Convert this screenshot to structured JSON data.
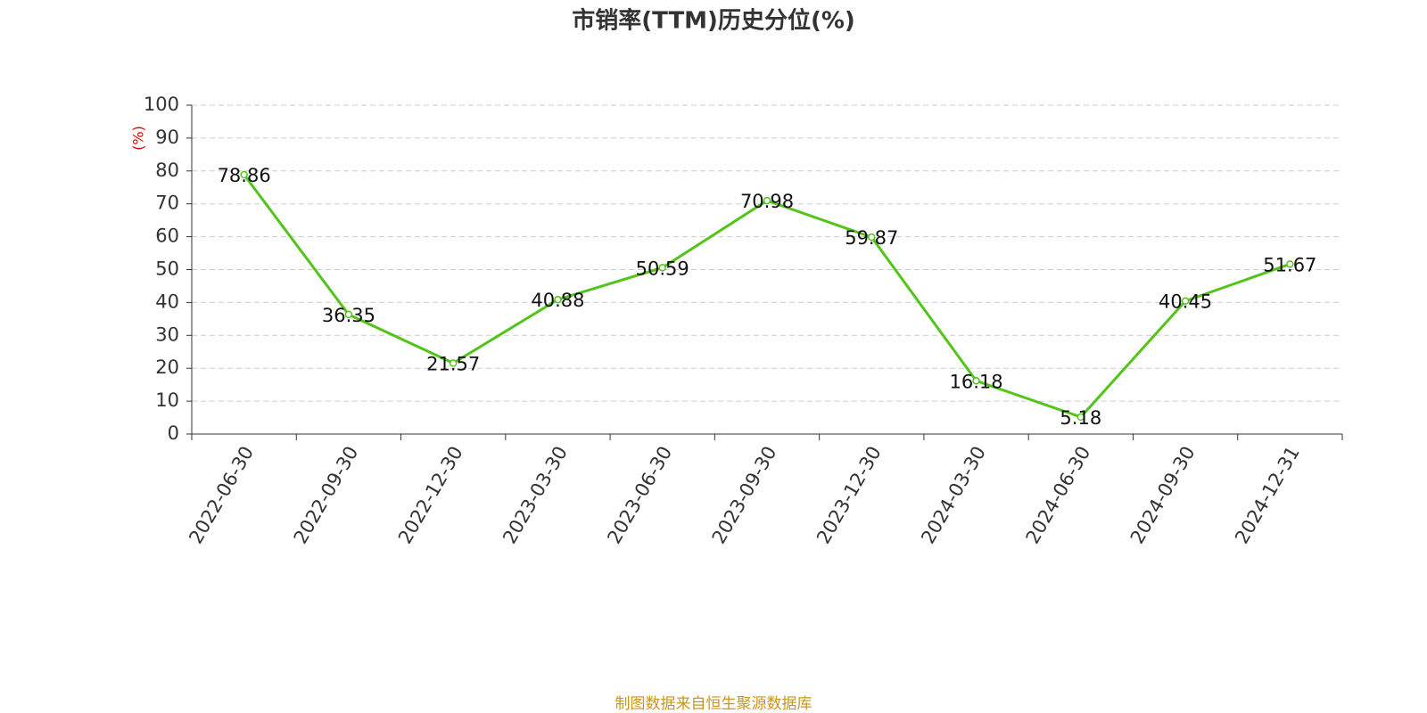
{
  "chart_data": {
    "type": "line",
    "title": "市销率(TTM)历史分位(%)",
    "y_label": "(%)",
    "categories": [
      "2022-06-30",
      "2022-09-30",
      "2022-12-30",
      "2023-03-30",
      "2023-06-30",
      "2023-09-30",
      "2023-12-30",
      "2024-03-30",
      "2024-06-30",
      "2024-09-30",
      "2024-12-31"
    ],
    "values": [
      78.86,
      36.35,
      21.57,
      40.88,
      50.59,
      70.98,
      59.87,
      16.18,
      5.18,
      40.45,
      51.67
    ],
    "color": "#52c41a",
    "ylim": [
      0,
      100
    ],
    "yticks": [
      0,
      10,
      20,
      30,
      40,
      50,
      60,
      70,
      80,
      90,
      100
    ],
    "grid": true,
    "source": "制图数据来自恒生聚源数据库"
  }
}
